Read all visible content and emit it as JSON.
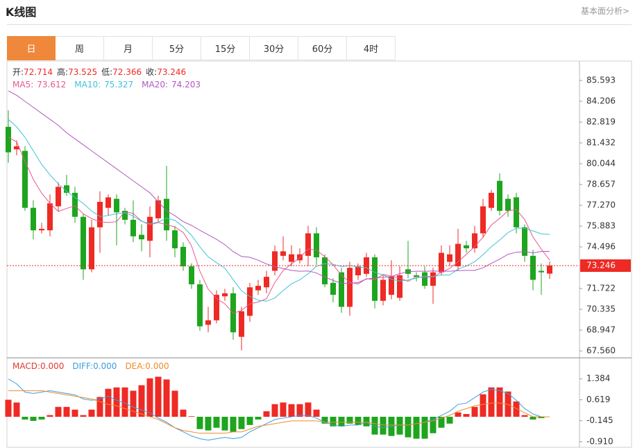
{
  "header": {
    "title": "K线图",
    "link": "基本面分析>"
  },
  "tabs": [
    "日",
    "周",
    "月",
    "5分",
    "15分",
    "30分",
    "60分",
    "4时"
  ],
  "active_tab": 0,
  "chart_data": [
    {
      "type": "candlestick",
      "ohlc_labels": [
        "开:",
        "高:",
        "低:",
        "收:"
      ],
      "up_color": "#ee2a24",
      "down_color": "#1ea51e",
      "label_color": "#333333",
      "open": [
        82.5,
        81.0,
        80.9,
        77.1,
        75.6,
        75.6,
        77.2,
        78.6,
        78.1,
        76.5,
        73.0,
        75.8,
        77.1,
        77.7,
        76.9,
        76.3,
        75.3,
        74.9,
        76.4,
        77.7,
        75.6,
        74.5,
        73.2,
        72.0,
        69.3,
        69.6,
        71.2,
        71.4,
        68.5,
        69.9,
        71.6,
        71.8,
        72.9,
        73.9,
        73.5,
        73.6,
        73.9,
        75.4,
        73.8,
        72.1,
        72.8,
        70.5,
        72.6,
        72.7,
        73.8,
        70.9,
        71.3,
        71.1,
        73.0,
        72.6,
        72.8,
        71.9,
        72.8,
        73.5,
        73.2,
        74.6,
        74.4,
        75.4,
        77.1,
        78.9,
        77.7,
        77.8,
        75.8,
        73.9,
        72.9,
        72.714
      ],
      "high": [
        83.6,
        81.6,
        81.2,
        77.6,
        76.1,
        78.0,
        78.8,
        79.3,
        78.5,
        76.7,
        76.3,
        78.2,
        78.0,
        78.0,
        77.1,
        77.6,
        76.0,
        77.2,
        77.9,
        79.9,
        75.9,
        74.8,
        73.4,
        72.3,
        70.5,
        71.6,
        71.7,
        71.8,
        70.5,
        72.1,
        72.3,
        72.9,
        74.6,
        75.2,
        74.6,
        74.4,
        75.9,
        75.8,
        74.0,
        72.4,
        73.1,
        73.5,
        73.4,
        74.1,
        74.0,
        72.6,
        73.6,
        73.2,
        74.9,
        72.8,
        73.2,
        73.1,
        74.6,
        74.6,
        75.7,
        74.9,
        75.9,
        77.7,
        78.3,
        79.4,
        78.0,
        78.1,
        76.0,
        74.3,
        73.4,
        73.525
      ],
      "low": [
        80.1,
        80.6,
        76.9,
        75.0,
        75.4,
        75.2,
        76.9,
        77.9,
        76.1,
        72.3,
        72.8,
        74.1,
        76.6,
        74.6,
        76.0,
        74.8,
        74.2,
        73.8,
        76.1,
        74.9,
        73.8,
        72.9,
        71.7,
        68.9,
        68.8,
        69.4,
        70.9,
        68.3,
        67.6,
        69.5,
        71.3,
        71.4,
        72.6,
        73.6,
        73.2,
        73.4,
        73.2,
        73.3,
        71.8,
        70.8,
        70.1,
        69.9,
        72.3,
        72.5,
        70.4,
        70.6,
        71.0,
        70.9,
        72.4,
        72.2,
        71.7,
        70.7,
        72.6,
        73.2,
        72.9,
        74.1,
        74.1,
        75.1,
        76.9,
        76.6,
        76.5,
        75.4,
        73.5,
        71.6,
        71.3,
        72.366
      ],
      "close": [
        80.8,
        81.2,
        77.1,
        75.6,
        75.7,
        77.4,
        78.5,
        78.1,
        76.5,
        73.0,
        75.8,
        77.5,
        77.8,
        76.8,
        76.3,
        75.2,
        75.0,
        76.5,
        77.6,
        75.6,
        74.4,
        73.2,
        72.0,
        69.2,
        69.6,
        71.3,
        71.4,
        68.8,
        70.2,
        71.8,
        71.9,
        72.5,
        74.2,
        74.2,
        74.0,
        74.0,
        75.4,
        73.8,
        72.0,
        71.3,
        70.5,
        73.1,
        73.2,
        73.8,
        70.9,
        72.3,
        72.5,
        72.6,
        72.7,
        72.5,
        71.9,
        72.8,
        74.1,
        74.0,
        74.7,
        74.4,
        75.4,
        77.2,
        78.1,
        76.9,
        76.9,
        75.8,
        73.9,
        72.3,
        72.8,
        73.246
      ],
      "series": [
        {
          "name": "MA5:",
          "color": "#e8578f",
          "values": [
            81.8,
            81.5,
            80.2,
            79.0,
            78.08,
            77.4,
            76.86,
            77.06,
            77.24,
            76.7,
            76.38,
            76.18,
            76.12,
            76.18,
            76.84,
            76.72,
            76.22,
            75.96,
            76.12,
            75.98,
            75.82,
            75.46,
            74.56,
            72.88,
            71.68,
            71.06,
            70.7,
            70.06,
            70.26,
            70.7,
            70.82,
            71.04,
            72.12,
            72.92,
            73.36,
            73.78,
            74.36,
            74.28,
            73.84,
            73.3,
            72.6,
            72.14,
            72.02,
            72.38,
            72.3,
            72.66,
            72.54,
            72.42,
            72.2,
            72.52,
            72.44,
            72.5,
            72.8,
            73.06,
            73.5,
            74.0,
            74.52,
            75.14,
            75.96,
            76.4,
            76.9,
            76.98,
            76.32,
            75.16,
            74.34,
            73.612
          ]
        },
        {
          "name": "MA10:",
          "color": "#3ec3d8",
          "values": [
            83.0,
            82.5,
            81.8,
            80.9,
            80.0,
            79.3,
            78.7,
            78.2,
            77.8,
            77.39,
            76.89,
            76.52,
            76.59,
            76.71,
            76.77,
            76.55,
            76.2,
            76.04,
            76.15,
            76.41,
            76.27,
            75.84,
            75.26,
            74.5,
            73.83,
            73.44,
            73.08,
            72.31,
            71.57,
            71.19,
            70.94,
            70.87,
            71.09,
            71.59,
            72.03,
            72.3,
            72.7,
            73.2,
            73.38,
            73.33,
            73.19,
            73.25,
            73.15,
            73.11,
            72.8,
            72.63,
            72.34,
            72.22,
            72.29,
            72.41,
            72.55,
            72.52,
            72.61,
            72.63,
            73.01,
            73.22,
            73.51,
            73.97,
            74.51,
            74.95,
            75.45,
            75.75,
            75.73,
            75.56,
            75.37,
            75.327
          ]
        },
        {
          "name": "MA20:",
          "color": "#b455c4",
          "values": [
            84.9,
            84.6,
            84.2,
            83.8,
            83.4,
            83.0,
            82.6,
            82.1,
            81.7,
            81.3,
            80.9,
            80.5,
            80.1,
            79.7,
            79.3,
            78.9,
            78.5,
            78.1,
            77.5,
            76.9,
            76.58,
            76.18,
            75.93,
            75.6,
            75.3,
            75.0,
            74.64,
            74.18,
            73.86,
            73.8,
            73.61,
            73.36,
            73.18,
            73.05,
            72.93,
            72.87,
            72.89,
            72.76,
            72.48,
            72.26,
            72.07,
            72.06,
            72.12,
            72.35,
            72.42,
            72.47,
            72.52,
            72.71,
            72.84,
            72.87,
            72.87,
            72.89,
            72.88,
            72.87,
            72.91,
            72.93,
            72.93,
            73.1,
            73.4,
            73.68,
            74.0,
            74.14,
            74.17,
            74.1,
            74.19,
            74.203
          ]
        }
      ],
      "ylim": [
        67.144,
        86.795
      ],
      "yticks": [
        85.593,
        84.206,
        82.819,
        81.432,
        80.044,
        78.657,
        {
          "value": 77.27,
          "label": "77.270"
        },
        75.883,
        74.496,
        71.722,
        70.335,
        68.947,
        {
          "value": 67.56,
          "label": "67.560"
        }
      ],
      "grid": false
    },
    {
      "type": "macd",
      "up_color": "#ee2a24",
      "down_color": "#1ea51e",
      "bars": {
        "name": "MACD:0.000",
        "color": "#e03a30",
        "values": [
          0.62,
          0.52,
          -0.1,
          -0.15,
          -0.1,
          0.06,
          0.36,
          0.36,
          0.26,
          0.06,
          0.26,
          0.72,
          1.02,
          1.07,
          1.07,
          0.95,
          1.15,
          1.4,
          1.46,
          1.36,
          0.95,
          0.26,
          0.02,
          -0.45,
          -0.5,
          -0.4,
          -0.5,
          -0.55,
          -0.45,
          -0.3,
          -0.1,
          0.2,
          0.46,
          0.52,
          0.46,
          0.46,
          0.52,
          0.26,
          -0.25,
          -0.35,
          -0.35,
          -0.25,
          -0.3,
          -0.35,
          -0.65,
          -0.65,
          -0.7,
          -0.65,
          -0.75,
          -0.8,
          -0.8,
          -0.6,
          -0.4,
          -0.25,
          0.16,
          0.1,
          0.36,
          0.82,
          1.07,
          1.07,
          0.92,
          0.56,
          0.06,
          -0.1,
          -0.05,
          0
        ]
      },
      "series": [
        {
          "name": "DIFF:0.000",
          "color": "#3a9ee0",
          "values": [
            1.38,
            1.2,
            0.9,
            0.85,
            0.9,
            0.95,
            0.9,
            0.85,
            0.8,
            0.65,
            0.6,
            0.65,
            0.75,
            0.6,
            0.5,
            0.35,
            0.25,
            0.15,
            -0.05,
            -0.2,
            -0.4,
            -0.55,
            -0.7,
            -0.8,
            -0.85,
            -0.8,
            -0.75,
            -0.8,
            -0.75,
            -0.55,
            -0.4,
            -0.25,
            -0.1,
            -0.05,
            0.0,
            0.05,
            0.05,
            -0.05,
            -0.2,
            -0.3,
            -0.35,
            -0.3,
            -0.3,
            -0.2,
            -0.35,
            -0.4,
            -0.35,
            -0.3,
            -0.3,
            -0.25,
            -0.2,
            -0.1,
            0.05,
            0.2,
            0.45,
            0.5,
            0.7,
            0.9,
            1.0,
            0.95,
            0.85,
            0.6,
            0.3,
            0.1,
            0.0,
            0
          ]
        },
        {
          "name": "DEA:0.000",
          "color": "#f08a28",
          "values": [
            0.95,
            0.95,
            0.95,
            0.95,
            0.95,
            0.9,
            0.85,
            0.8,
            0.75,
            0.7,
            0.65,
            0.55,
            0.45,
            0.4,
            0.3,
            0.2,
            0.1,
            0.0,
            -0.1,
            -0.25,
            -0.4,
            -0.5,
            -0.55,
            -0.6,
            -0.6,
            -0.6,
            -0.6,
            -0.55,
            -0.55,
            -0.45,
            -0.35,
            -0.3,
            -0.25,
            -0.2,
            -0.15,
            -0.15,
            -0.15,
            -0.15,
            -0.2,
            -0.2,
            -0.2,
            -0.2,
            -0.2,
            -0.2,
            -0.25,
            -0.3,
            -0.3,
            -0.3,
            -0.3,
            -0.25,
            -0.2,
            -0.15,
            -0.05,
            0.05,
            0.2,
            0.3,
            0.4,
            0.45,
            0.5,
            0.5,
            0.45,
            0.3,
            0.15,
            0.0,
            0.0,
            0
          ]
        }
      ],
      "ylim": [
        -1.139,
        2.123
      ],
      "yticks": [
        1.384,
        0.619,
        -0.145,
        {
          "value": -0.91,
          "label": "-0.910"
        }
      ]
    }
  ]
}
